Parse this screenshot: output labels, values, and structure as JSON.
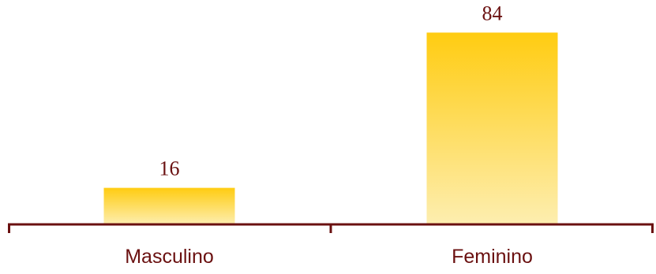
{
  "chart_data": {
    "type": "bar",
    "categories": [
      "Masculino",
      "Feminino"
    ],
    "values": [
      16,
      84
    ],
    "title": "",
    "xlabel": "",
    "ylabel": "",
    "ylim": [
      0,
      100
    ],
    "grid": false,
    "legend": "none",
    "data_labels": [
      "16",
      "84"
    ]
  },
  "colors": {
    "bar_top": "#ffcc11",
    "bar_bottom": "#fdeeb0",
    "axis": "#6a1010",
    "text": "#6a1010"
  }
}
